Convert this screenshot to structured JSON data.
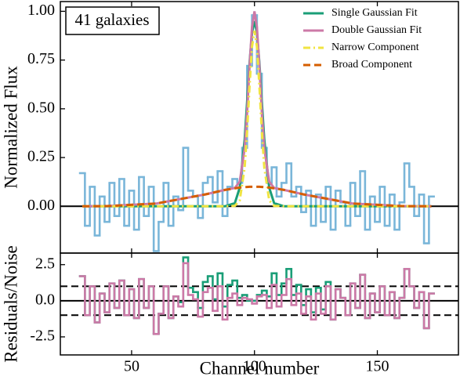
{
  "chart_data": [
    {
      "type": "line",
      "ylabel": "Normalized Flux",
      "annotation": "41 galaxies",
      "legend": "upper right",
      "xlim": [
        21,
        183
      ],
      "xticks": [
        50,
        100,
        150
      ],
      "ylim": [
        -0.24,
        1.05
      ],
      "yticks": [
        {
          "value": 0,
          "label": "0.00"
        },
        {
          "value": 0.25,
          "label": "0.25"
        },
        {
          "value": 0.5,
          "label": "0.50"
        },
        {
          "value": 0.75,
          "label": "0.75"
        },
        {
          "value": 1,
          "label": "1.00"
        }
      ],
      "hlines": [
        {
          "value": 0,
          "linestyle": "solid",
          "color": "#000000"
        }
      ],
      "series": [
        {
          "color": "#7ab6d9",
          "step": true,
          "linestyle": "solid",
          "x": [
            30,
            32,
            34,
            36,
            38,
            40,
            42,
            44,
            46,
            48,
            50,
            52,
            54,
            56,
            58,
            60,
            62,
            64,
            66,
            68,
            70,
            72,
            74,
            76,
            78,
            80,
            82,
            84,
            86,
            88,
            90,
            92,
            94,
            96,
            98,
            100,
            102,
            104,
            106,
            108,
            110,
            112,
            114,
            116,
            118,
            120,
            122,
            124,
            126,
            128,
            130,
            132,
            134,
            136,
            138,
            140,
            142,
            144,
            146,
            148,
            150,
            152,
            154,
            156,
            158,
            160,
            162,
            164,
            166,
            168,
            170,
            172
          ],
          "values": [
            0.17,
            -0.1,
            0.1,
            -0.15,
            0.05,
            -0.08,
            0.12,
            -0.05,
            0.14,
            -0.1,
            0.08,
            -0.12,
            0.15,
            -0.05,
            0.1,
            -0.23,
            -0.08,
            0.12,
            -0.1,
            0.05,
            -0.02,
            0.3,
            0.08,
            0.05,
            -0.06,
            0.12,
            0.15,
            0.02,
            0.18,
            -0.05,
            0.1,
            0.14,
            0.12,
            0.3,
            0.72,
            0.98,
            0.68,
            0.3,
            0.12,
            0.2,
            0.05,
            0.12,
            0.22,
            0.05,
            0.1,
            -0.03,
            0.08,
            -0.1,
            0.06,
            -0.08,
            0.1,
            -0.12,
            0.08,
            0.02,
            -0.1,
            0.12,
            -0.05,
            0.18,
            -0.12,
            0.05,
            -0.08,
            0.1,
            -0.1,
            0.06,
            -0.12,
            0.02,
            0.22,
            0.1,
            -0.05,
            0.06,
            -0.19,
            0.05
          ]
        },
        {
          "name": "Single Gaussian Fit",
          "color": "#1a9e77",
          "linestyle": "solid",
          "x": [
            30,
            40,
            60,
            80,
            88,
            92,
            94,
            96,
            97,
            98,
            99,
            100,
            101,
            102,
            103,
            104,
            106,
            108,
            112,
            120,
            140,
            160,
            172
          ],
          "values": [
            0,
            0,
            0,
            0,
            0,
            0.016,
            0.095,
            0.342,
            0.535,
            0.736,
            0.891,
            0.95,
            0.891,
            0.736,
            0.535,
            0.342,
            0.095,
            0.016,
            0,
            0,
            0,
            0,
            0
          ]
        },
        {
          "name": "Double Gaussian Fit",
          "color": "#cc79a7",
          "linestyle": "solid",
          "x": [
            30,
            40,
            60,
            80,
            88,
            92,
            94,
            96,
            97,
            98,
            99,
            100,
            101,
            102,
            103,
            104,
            106,
            108,
            112,
            120,
            140,
            160,
            172
          ],
          "values": [
            0,
            0.001,
            0.014,
            0.061,
            0.084,
            0.094,
            0.126,
            0.296,
            0.483,
            0.717,
            0.919,
            1.0,
            0.919,
            0.717,
            0.483,
            0.296,
            0.126,
            0.094,
            0.084,
            0.061,
            0.014,
            0.001,
            0
          ]
        },
        {
          "name": "Narrow Component",
          "color": "#f0e442",
          "linestyle": "dashdot",
          "x": [
            30,
            40,
            60,
            80,
            88,
            92,
            94,
            96,
            97,
            98,
            99,
            100,
            101,
            102,
            103,
            104,
            106,
            108,
            112,
            120,
            140,
            160,
            172
          ],
          "values": [
            0,
            0,
            0,
            0,
            0,
            0.002,
            0.03,
            0.198,
            0.384,
            0.617,
            0.819,
            0.9,
            0.819,
            0.617,
            0.384,
            0.198,
            0.03,
            0.002,
            0,
            0,
            0,
            0,
            0
          ]
        },
        {
          "name": "Broad Component",
          "color": "#d55e00",
          "linestyle": "dashed",
          "x": [
            30,
            40,
            60,
            80,
            88,
            92,
            94,
            96,
            97,
            98,
            99,
            100,
            101,
            102,
            103,
            104,
            106,
            108,
            112,
            120,
            140,
            160,
            172
          ],
          "values": [
            0,
            0.001,
            0.014,
            0.061,
            0.084,
            0.092,
            0.096,
            0.098,
            0.099,
            0.1,
            0.1,
            0.1,
            0.1,
            0.1,
            0.099,
            0.098,
            0.096,
            0.092,
            0.084,
            0.061,
            0.014,
            0.001,
            0
          ]
        }
      ]
    },
    {
      "type": "line",
      "xlabel": "Channel number",
      "ylabel": "Residuals/Noise",
      "xlim": [
        21,
        183
      ],
      "xticks": [
        50,
        100,
        150
      ],
      "ylim": [
        -3.75,
        3.3
      ],
      "yticks": [
        -2.5,
        {
          "value": 0,
          "label": "0.0"
        },
        2.5
      ],
      "hlines": [
        {
          "value": 0,
          "linestyle": "solid",
          "color": "#000000"
        },
        {
          "value": 1,
          "linestyle": "dashed",
          "color": "#000000"
        },
        {
          "value": -1,
          "linestyle": "dashed",
          "color": "#000000"
        }
      ],
      "series": [
        {
          "color": "#1a9e77",
          "step": true,
          "linestyle": "solid",
          "x": [
            30,
            32,
            34,
            36,
            38,
            40,
            42,
            44,
            46,
            48,
            50,
            52,
            54,
            56,
            58,
            60,
            62,
            64,
            66,
            68,
            70,
            72,
            74,
            76,
            78,
            80,
            82,
            84,
            86,
            88,
            90,
            92,
            94,
            96,
            98,
            100,
            102,
            104,
            106,
            108,
            110,
            112,
            114,
            116,
            118,
            120,
            122,
            124,
            126,
            128,
            130,
            132,
            134,
            136,
            138,
            140,
            142,
            144,
            146,
            148,
            150,
            152,
            154,
            156,
            158,
            160,
            162,
            164,
            166,
            168,
            170,
            172
          ],
          "values": [
            1.7,
            -1,
            1,
            -1.5,
            0.5,
            -0.8,
            1.2,
            -0.5,
            1.4,
            -1,
            0.8,
            -1.2,
            1.5,
            -0.5,
            1,
            -2.3,
            -0.9,
            1,
            -1.2,
            0.3,
            -0.1,
            3.0,
            0.9,
            0.6,
            -0.5,
            1.3,
            1.7,
            0.1,
            1.9,
            -0.4,
            1.1,
            1.4,
            0.2,
            0.4,
            0,
            0,
            0.4,
            0.7,
            0.3,
            1.9,
            0.4,
            1.2,
            2.2,
            0.4,
            1.1,
            -0.3,
            0.8,
            -0.8,
            0.9,
            -0.6,
            1.3,
            -1.3,
            0.8,
            0.2,
            -1,
            1.2,
            -0.5,
            1.8,
            -1.2,
            0.5,
            -0.8,
            1,
            -1,
            0.6,
            -1.2,
            0.2,
            2.2,
            1,
            -0.5,
            0.6,
            -1.9,
            0.5
          ]
        },
        {
          "color": "#cc79a7",
          "step": true,
          "linestyle": "solid",
          "x": [
            30,
            32,
            34,
            36,
            38,
            40,
            42,
            44,
            46,
            48,
            50,
            52,
            54,
            56,
            58,
            60,
            62,
            64,
            66,
            68,
            70,
            72,
            74,
            76,
            78,
            80,
            82,
            84,
            86,
            88,
            90,
            92,
            94,
            96,
            98,
            100,
            102,
            104,
            106,
            108,
            110,
            112,
            114,
            116,
            118,
            120,
            122,
            124,
            126,
            128,
            130,
            132,
            134,
            136,
            138,
            140,
            142,
            144,
            146,
            148,
            150,
            152,
            154,
            156,
            158,
            160,
            162,
            164,
            166,
            168,
            170,
            172
          ],
          "values": [
            1.7,
            -1,
            1,
            -1.5,
            0.5,
            -0.8,
            1.2,
            -0.5,
            1.4,
            -1,
            0.8,
            -1.2,
            1.5,
            -0.5,
            1,
            -2.3,
            -0.9,
            1,
            -1.2,
            0.3,
            -0.4,
            2.6,
            0.4,
            0.1,
            -1.1,
            0.6,
            0.9,
            -0.7,
            1,
            -1.3,
            0.2,
            0.5,
            -0.3,
            0.2,
            0.1,
            -0.2,
            0.3,
            0.4,
            -0.5,
            1.1,
            -0.4,
            0.4,
            1.5,
            -0.3,
            0.5,
            -0.9,
            0.3,
            -1.3,
            0.5,
            -0.9,
            1,
            -1.3,
            0.8,
            0.2,
            -1,
            1.2,
            -0.5,
            1.8,
            -1.2,
            0.5,
            -0.8,
            1,
            -1,
            0.6,
            -1.2,
            0.2,
            2.2,
            1,
            -0.5,
            0.6,
            -1.9,
            0.5
          ]
        }
      ]
    }
  ]
}
